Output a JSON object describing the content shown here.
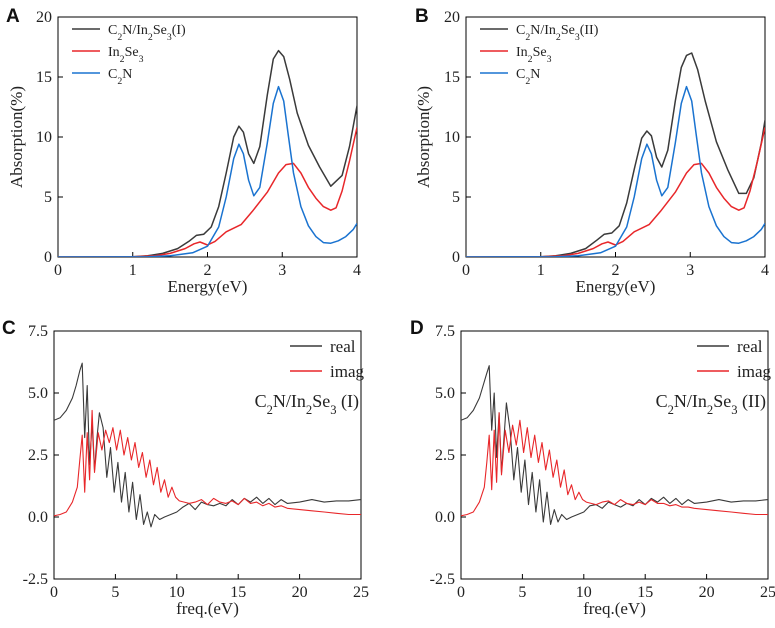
{
  "colors": {
    "black": "#3a3a3a",
    "red": "#e8272a",
    "blue": "#1a73d0"
  },
  "chart_data": [
    {
      "id": "A",
      "panel_label": "A",
      "type": "line",
      "title": "",
      "xlabel": "Energy(eV)",
      "ylabel": "Absorption(%)",
      "xlim": [
        0,
        4
      ],
      "ylim": [
        0,
        20
      ],
      "xticks": [
        0,
        1,
        2,
        3,
        4
      ],
      "yticks": [
        0,
        5,
        10,
        15,
        20
      ],
      "xtick_labels": [
        "0",
        "1",
        "2",
        "3",
        "4"
      ],
      "ytick_labels": [
        "0",
        "5",
        "10",
        "15",
        "20"
      ],
      "legend_position": "top-left",
      "series": [
        {
          "legend": {
            "main": "C",
            "sub1": "2",
            "mid": "N/In",
            "sub2": "2",
            "mid2": "Se",
            "sub3": "3",
            "tail": "(I)"
          },
          "color": "black",
          "x": [
            0,
            1.0,
            1.2,
            1.4,
            1.6,
            1.75,
            1.85,
            1.95,
            2.05,
            2.15,
            2.25,
            2.35,
            2.42,
            2.48,
            2.55,
            2.62,
            2.7,
            2.8,
            2.88,
            2.95,
            3.02,
            3.1,
            3.2,
            3.35,
            3.5,
            3.65,
            3.8,
            3.9,
            4.0
          ],
          "y": [
            0,
            0.02,
            0.1,
            0.3,
            0.7,
            1.3,
            1.8,
            1.9,
            2.5,
            4.2,
            7.0,
            10.0,
            10.9,
            10.4,
            8.6,
            7.8,
            9.2,
            13.5,
            16.5,
            17.2,
            16.7,
            14.8,
            12.0,
            9.3,
            7.5,
            5.9,
            6.8,
            9.2,
            12.6
          ]
        },
        {
          "legend": {
            "main": "In",
            "sub1": "2",
            "mid": "Se",
            "sub2": "3"
          },
          "color": "red",
          "x": [
            0,
            1.0,
            1.3,
            1.5,
            1.7,
            1.82,
            1.9,
            2.0,
            2.1,
            2.25,
            2.45,
            2.6,
            2.8,
            2.95,
            3.05,
            3.15,
            3.25,
            3.35,
            3.45,
            3.55,
            3.65,
            3.72,
            3.8,
            3.9,
            4.0
          ],
          "y": [
            0,
            0.02,
            0.1,
            0.3,
            0.7,
            1.1,
            1.25,
            1.0,
            1.3,
            2.1,
            2.7,
            3.8,
            5.4,
            7.0,
            7.7,
            7.8,
            7.0,
            5.8,
            4.9,
            4.2,
            3.9,
            4.1,
            5.5,
            8.0,
            10.8
          ]
        },
        {
          "legend": {
            "main": "C",
            "sub1": "2",
            "mid": "N"
          },
          "color": "blue",
          "x": [
            0,
            1.2,
            1.5,
            1.8,
            2.0,
            2.15,
            2.25,
            2.35,
            2.42,
            2.48,
            2.55,
            2.62,
            2.7,
            2.8,
            2.88,
            2.95,
            3.02,
            3.08,
            3.15,
            3.25,
            3.35,
            3.45,
            3.55,
            3.65,
            3.75,
            3.85,
            3.95,
            4.0
          ],
          "y": [
            0,
            0.02,
            0.1,
            0.35,
            0.9,
            2.5,
            5.0,
            8.2,
            9.4,
            8.6,
            6.4,
            5.1,
            5.8,
            9.5,
            12.8,
            14.2,
            13.0,
            10.2,
            7.0,
            4.2,
            2.6,
            1.7,
            1.2,
            1.15,
            1.35,
            1.7,
            2.3,
            2.8
          ]
        }
      ]
    },
    {
      "id": "B",
      "panel_label": "B",
      "type": "line",
      "title": "",
      "xlabel": "Energy(eV)",
      "ylabel": "Absorption(%)",
      "xlim": [
        0,
        4
      ],
      "ylim": [
        0,
        20
      ],
      "xticks": [
        0,
        1,
        2,
        3,
        4
      ],
      "yticks": [
        0,
        5,
        10,
        15,
        20
      ],
      "xtick_labels": [
        "0",
        "1",
        "2",
        "3",
        "4"
      ],
      "ytick_labels": [
        "0",
        "5",
        "10",
        "15",
        "20"
      ],
      "legend_position": "top-left",
      "series": [
        {
          "legend": {
            "main": "C",
            "sub1": "2",
            "mid": "N/In",
            "sub2": "2",
            "mid2": "Se",
            "sub3": "3",
            "tail": "(II)"
          },
          "color": "black",
          "x": [
            0,
            1.0,
            1.2,
            1.4,
            1.6,
            1.75,
            1.85,
            1.95,
            2.05,
            2.15,
            2.25,
            2.35,
            2.42,
            2.48,
            2.55,
            2.62,
            2.7,
            2.8,
            2.88,
            2.95,
            3.02,
            3.1,
            3.2,
            3.35,
            3.5,
            3.65,
            3.75,
            3.85,
            3.95,
            4.0
          ],
          "y": [
            0,
            0.02,
            0.1,
            0.3,
            0.7,
            1.4,
            1.9,
            2.0,
            2.6,
            4.5,
            7.3,
            9.9,
            10.5,
            10.1,
            8.3,
            7.5,
            8.9,
            13.0,
            15.8,
            16.8,
            17.0,
            15.6,
            13.0,
            9.6,
            7.3,
            5.3,
            5.3,
            6.6,
            9.5,
            11.4
          ]
        },
        {
          "legend": {
            "main": "In",
            "sub1": "2",
            "mid": "Se",
            "sub2": "3"
          },
          "color": "red",
          "x": [
            0,
            1.0,
            1.3,
            1.5,
            1.7,
            1.82,
            1.9,
            2.0,
            2.1,
            2.25,
            2.45,
            2.6,
            2.8,
            2.95,
            3.05,
            3.15,
            3.25,
            3.35,
            3.45,
            3.55,
            3.65,
            3.72,
            3.8,
            3.9,
            4.0
          ],
          "y": [
            0,
            0.02,
            0.1,
            0.3,
            0.7,
            1.1,
            1.25,
            1.0,
            1.3,
            2.1,
            2.7,
            3.8,
            5.4,
            7.0,
            7.7,
            7.8,
            7.0,
            5.8,
            4.9,
            4.2,
            3.9,
            4.1,
            5.5,
            8.0,
            10.8
          ]
        },
        {
          "legend": {
            "main": "C",
            "sub1": "2",
            "mid": "N"
          },
          "color": "blue",
          "x": [
            0,
            1.2,
            1.5,
            1.8,
            2.0,
            2.15,
            2.25,
            2.35,
            2.42,
            2.48,
            2.55,
            2.62,
            2.7,
            2.8,
            2.88,
            2.95,
            3.02,
            3.08,
            3.15,
            3.25,
            3.35,
            3.45,
            3.55,
            3.65,
            3.75,
            3.85,
            3.95,
            4.0
          ],
          "y": [
            0,
            0.02,
            0.1,
            0.35,
            0.9,
            2.5,
            5.0,
            8.2,
            9.4,
            8.6,
            6.4,
            5.1,
            5.8,
            9.5,
            12.8,
            14.2,
            13.0,
            10.2,
            7.0,
            4.2,
            2.6,
            1.7,
            1.2,
            1.15,
            1.35,
            1.7,
            2.3,
            2.8
          ]
        }
      ]
    },
    {
      "id": "C",
      "panel_label": "C",
      "type": "line",
      "title": "",
      "xlabel": "freq.(eV)",
      "ylabel": "",
      "xlim": [
        0,
        25
      ],
      "ylim": [
        -2.5,
        7.5
      ],
      "xticks": [
        0,
        5,
        10,
        15,
        20,
        25
      ],
      "yticks": [
        -2.5,
        0.0,
        2.5,
        5.0,
        7.5
      ],
      "xtick_labels": [
        "0",
        "5",
        "10",
        "15",
        "20",
        "25"
      ],
      "ytick_labels": [
        "-2.5",
        "0.0",
        "2.5",
        "5.0",
        "7.5"
      ],
      "legend_position": "top-right",
      "annotation": {
        "main": "C",
        "sub1": "2",
        "mid": "N/In",
        "sub2": "2",
        "mid2": "Se",
        "sub3": "3",
        "tail": " (I)"
      },
      "series": [
        {
          "name": "real",
          "color": "black",
          "x": [
            0,
            0.5,
            1.0,
            1.5,
            1.8,
            2.1,
            2.3,
            2.5,
            2.7,
            2.9,
            3.1,
            3.3,
            3.5,
            3.7,
            4.0,
            4.3,
            4.6,
            4.9,
            5.2,
            5.5,
            5.8,
            6.1,
            6.4,
            6.7,
            7.0,
            7.3,
            7.6,
            7.9,
            8.2,
            8.6,
            9.0,
            9.5,
            10.0,
            10.5,
            11.0,
            11.5,
            12.0,
            12.5,
            13.0,
            13.5,
            14.0,
            14.5,
            15.0,
            15.5,
            16.0,
            16.5,
            17.0,
            17.5,
            18.0,
            18.5,
            19.0,
            20.0,
            21.0,
            22.0,
            23.0,
            24.0,
            25.0
          ],
          "y": [
            3.9,
            4.0,
            4.3,
            4.8,
            5.3,
            5.9,
            6.2,
            3.2,
            5.3,
            2.1,
            3.8,
            1.9,
            3.2,
            4.2,
            3.6,
            1.6,
            2.8,
            1.0,
            2.2,
            0.6,
            1.8,
            0.2,
            1.4,
            -0.1,
            0.9,
            -0.3,
            0.2,
            -0.4,
            0.1,
            -0.1,
            0.0,
            0.1,
            0.2,
            0.4,
            0.55,
            0.3,
            0.6,
            0.5,
            0.45,
            0.55,
            0.45,
            0.7,
            0.5,
            0.75,
            0.6,
            0.8,
            0.55,
            0.75,
            0.5,
            0.7,
            0.55,
            0.6,
            0.7,
            0.6,
            0.65,
            0.65,
            0.7
          ]
        },
        {
          "name": "imag",
          "color": "red",
          "x": [
            0,
            0.5,
            1.0,
            1.5,
            1.9,
            2.1,
            2.3,
            2.5,
            2.7,
            2.9,
            3.1,
            3.3,
            3.6,
            3.9,
            4.2,
            4.5,
            4.8,
            5.1,
            5.4,
            5.7,
            6.0,
            6.3,
            6.6,
            6.9,
            7.2,
            7.5,
            7.8,
            8.1,
            8.4,
            8.7,
            9.0,
            9.3,
            9.6,
            9.9,
            10.2,
            10.6,
            11.0,
            11.5,
            12.0,
            12.5,
            13.0,
            13.5,
            14.0,
            14.5,
            15.0,
            15.5,
            16.0,
            16.5,
            17.0,
            17.5,
            18.0,
            18.5,
            19.0,
            20.0,
            21.0,
            22.0,
            23.0,
            24.0,
            25.0
          ],
          "y": [
            0.05,
            0.1,
            0.2,
            0.6,
            1.2,
            2.3,
            3.3,
            1.0,
            3.4,
            1.5,
            4.3,
            1.8,
            3.4,
            2.7,
            3.5,
            3.0,
            3.6,
            2.7,
            3.5,
            2.5,
            3.2,
            2.3,
            3.0,
            2.0,
            2.6,
            1.6,
            2.3,
            1.3,
            2.0,
            1.0,
            1.5,
            0.8,
            1.2,
            0.8,
            0.65,
            0.6,
            0.55,
            0.6,
            0.7,
            0.5,
            0.75,
            0.6,
            0.55,
            0.65,
            0.5,
            0.75,
            0.55,
            0.6,
            0.45,
            0.55,
            0.4,
            0.45,
            0.35,
            0.3,
            0.25,
            0.2,
            0.15,
            0.1,
            0.1
          ]
        }
      ]
    },
    {
      "id": "D",
      "panel_label": "D",
      "type": "line",
      "title": "",
      "xlabel": "freq.(eV)",
      "ylabel": "",
      "xlim": [
        0,
        25
      ],
      "ylim": [
        -2.5,
        7.5
      ],
      "xticks": [
        0,
        5,
        10,
        15,
        20,
        25
      ],
      "yticks": [
        -2.5,
        0.0,
        2.5,
        5.0,
        7.5
      ],
      "xtick_labels": [
        "0",
        "5",
        "10",
        "15",
        "20",
        "25"
      ],
      "ytick_labels": [
        "-2.5",
        "0.0",
        "2.5",
        "5.0",
        "7.5"
      ],
      "legend_position": "top-right",
      "annotation": {
        "main": "C",
        "sub1": "2",
        "mid": "N/In",
        "sub2": "2",
        "mid2": "Se",
        "sub3": "3",
        "tail": " (II)"
      },
      "series": [
        {
          "name": "real",
          "color": "black",
          "x": [
            0,
            0.5,
            1.0,
            1.5,
            1.8,
            2.1,
            2.3,
            2.5,
            2.7,
            2.9,
            3.1,
            3.3,
            3.5,
            3.7,
            4.0,
            4.3,
            4.6,
            4.9,
            5.2,
            5.5,
            5.8,
            6.1,
            6.4,
            6.7,
            7.0,
            7.3,
            7.6,
            7.9,
            8.2,
            8.6,
            9.0,
            9.5,
            10.0,
            10.5,
            11.0,
            11.5,
            12.0,
            12.5,
            13.0,
            13.5,
            14.0,
            14.5,
            15.0,
            15.5,
            16.0,
            16.5,
            17.0,
            17.5,
            18.0,
            18.5,
            19.0,
            20.0,
            21.0,
            22.0,
            23.0,
            24.0,
            25.0
          ],
          "y": [
            3.9,
            4.0,
            4.3,
            4.8,
            5.3,
            5.8,
            6.1,
            3.5,
            5.0,
            2.4,
            4.2,
            1.8,
            3.2,
            4.6,
            3.5,
            1.5,
            2.8,
            1.0,
            2.3,
            0.5,
            1.8,
            0.2,
            1.5,
            -0.2,
            1.0,
            -0.3,
            0.3,
            -0.2,
            0.1,
            -0.1,
            0.0,
            0.1,
            0.2,
            0.45,
            0.5,
            0.35,
            0.6,
            0.5,
            0.4,
            0.55,
            0.45,
            0.7,
            0.5,
            0.75,
            0.6,
            0.8,
            0.55,
            0.75,
            0.5,
            0.7,
            0.55,
            0.6,
            0.7,
            0.6,
            0.65,
            0.65,
            0.7
          ]
        },
        {
          "name": "imag",
          "color": "red",
          "x": [
            0,
            0.5,
            1.0,
            1.5,
            1.9,
            2.1,
            2.3,
            2.5,
            2.7,
            2.9,
            3.1,
            3.3,
            3.6,
            3.9,
            4.2,
            4.5,
            4.8,
            5.1,
            5.4,
            5.7,
            6.0,
            6.3,
            6.6,
            6.9,
            7.2,
            7.5,
            7.8,
            8.1,
            8.4,
            8.7,
            9.0,
            9.3,
            9.6,
            9.9,
            10.2,
            10.6,
            11.0,
            11.5,
            12.0,
            12.5,
            13.0,
            13.5,
            14.0,
            14.5,
            15.0,
            15.5,
            16.0,
            16.5,
            17.0,
            17.5,
            18.0,
            18.5,
            19.0,
            20.0,
            21.0,
            22.0,
            23.0,
            24.0,
            25.0
          ],
          "y": [
            0.05,
            0.1,
            0.2,
            0.6,
            1.2,
            2.2,
            3.3,
            1.1,
            3.5,
            1.4,
            4.2,
            1.7,
            3.5,
            2.6,
            3.7,
            2.9,
            3.9,
            2.6,
            3.6,
            2.4,
            3.3,
            2.2,
            3.0,
            1.9,
            2.7,
            1.6,
            2.3,
            1.2,
            1.9,
            0.9,
            1.3,
            0.7,
            1.0,
            0.7,
            0.6,
            0.55,
            0.5,
            0.6,
            0.65,
            0.5,
            0.7,
            0.55,
            0.5,
            0.6,
            0.5,
            0.7,
            0.55,
            0.55,
            0.45,
            0.5,
            0.4,
            0.4,
            0.35,
            0.3,
            0.25,
            0.2,
            0.15,
            0.1,
            0.1
          ]
        }
      ]
    }
  ]
}
